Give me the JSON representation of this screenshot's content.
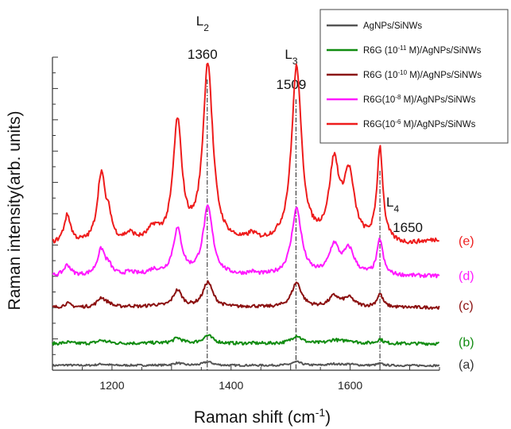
{
  "chart_data": {
    "type": "line",
    "xlabel": "Raman shift (cm",
    "xlabel_sup": "-1",
    "xlabel_close": ")",
    "ylabel": "Raman intensity(arb. units)",
    "xlim": [
      1100,
      1750
    ],
    "ylim": [
      0,
      100
    ],
    "x_ticks": [
      1200,
      1400,
      1600
    ],
    "y_tick_labels": "none",
    "grid": false,
    "legend_position": "top-right",
    "peaks": [
      {
        "x": 1360,
        "name": "L",
        "sub": "2",
        "value": "1360"
      },
      {
        "x": 1509,
        "name": "L",
        "sub": "3",
        "value": "1509"
      },
      {
        "x": 1650,
        "name": "L",
        "sub": "4",
        "value": "1650"
      }
    ],
    "series": [
      {
        "name": "AgNPs/SiNWs",
        "legend": {
          "pre": "AgNPs/SiNWs"
        },
        "label": "(a)",
        "color": "#555555",
        "baseline": 1.5,
        "scale": 0.02,
        "noise": 0.3,
        "x": [
          1100,
          1750
        ],
        "y": [
          1.5,
          1.5
        ]
      },
      {
        "name": "R6G(10-11 M)/AgNPs/SiNWs",
        "legend": {
          "pre": "R6G (10",
          "sup": "-11",
          "post": " M)/AgNPs/SiNWs"
        },
        "label": "(b)",
        "color": "#118c11",
        "baseline": 8.5,
        "scale": 0.045,
        "noise": 0.5,
        "x": [
          1100,
          1750
        ],
        "y": [
          8.5,
          8.5
        ]
      },
      {
        "name": "R6G (10-10 M)/AgNPs/SiNWs",
        "legend": {
          "pre": "R6G (10",
          "sup": "-10",
          "post": " M)/AgNPs/SiNWs"
        },
        "label": "(c)",
        "color": "#8b1010",
        "baseline": 20,
        "scale": 0.14,
        "noise": 0.5,
        "x": [
          1100,
          1750
        ],
        "y": [
          20,
          20
        ]
      },
      {
        "name": "R6G(10-8 M)/AgNPs/SiNWs",
        "legend": {
          "pre": "R6G(10",
          "sup": "-8",
          "post": " M)/AgNPs/SiNWs"
        },
        "label": "(d)",
        "color": "#ff1aff",
        "baseline": 30,
        "scale": 0.38,
        "noise": 0.6,
        "x": [
          1100,
          1750
        ],
        "y": [
          30,
          30
        ]
      },
      {
        "name": "R6G(10-6 M)/AgNPs/SiNWs",
        "legend": {
          "pre": "R6G(10",
          "sup": "-6",
          "post": " M)/AgNPs/SiNWs"
        },
        "label": "(e)",
        "color": "#ee1c1c",
        "baseline": 40,
        "scale": 1.0,
        "noise": 0.7,
        "x": [
          1100,
          1750
        ],
        "y": [
          40,
          40
        ]
      }
    ],
    "peak_profile": [
      {
        "x": 1125,
        "h": 9,
        "w": 7
      },
      {
        "x": 1182,
        "h": 22,
        "w": 8
      },
      {
        "x": 1195,
        "h": 6,
        "w": 6
      },
      {
        "x": 1230,
        "h": 2.5,
        "w": 10
      },
      {
        "x": 1270,
        "h": 4,
        "w": 12
      },
      {
        "x": 1310,
        "h": 38,
        "w": 9
      },
      {
        "x": 1361,
        "h": 57,
        "w": 10
      },
      {
        "x": 1435,
        "h": 2,
        "w": 8
      },
      {
        "x": 1510,
        "h": 56,
        "w": 10
      },
      {
        "x": 1573,
        "h": 24,
        "w": 10
      },
      {
        "x": 1598,
        "h": 21,
        "w": 11
      },
      {
        "x": 1650,
        "h": 30,
        "w": 6
      }
    ]
  }
}
